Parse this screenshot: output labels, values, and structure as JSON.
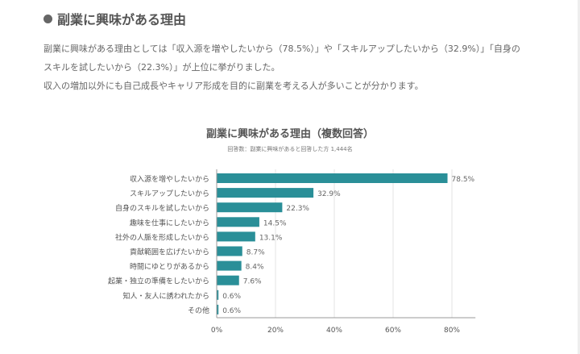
{
  "heading": {
    "icon": "bullet-dot-icon",
    "title": "副業に興味がある理由"
  },
  "description": {
    "line1": "副業に興味がある理由としては「収入源を増やしたいから（78.5%）」や「スキルアップしたいから（32.9%）」「自身の",
    "line2": "スキルを試したいから（22.3%）」が上位に挙がりました。",
    "line3": "収入の増加以外にも自己成長やキャリア形成を目的に副業を考える人が多いことが分かります。"
  },
  "chart_data": {
    "type": "bar",
    "orientation": "horizontal",
    "title": "副業に興味がある理由（複数回答）",
    "subtitle": "回答数：副業に興味があると回答した方 1,444名",
    "categories": [
      "収入源を増やしたいから",
      "スキルアップしたいから",
      "自身のスキルを試したいから",
      "趣味を仕事にしたいから",
      "社外の人脈を形成したいから",
      "貢献範囲を広げたいから",
      "時間にゆとりがあるから",
      "起業・独立の準備をしたいから",
      "知人・友人に誘われたから",
      "その他"
    ],
    "values": [
      78.5,
      32.9,
      22.3,
      14.5,
      13.1,
      8.7,
      8.4,
      7.6,
      0.6,
      0.6
    ],
    "value_labels": [
      "78.5%",
      "32.9%",
      "22.3%",
      "14.5%",
      "13.1%",
      "8.7%",
      "8.4%",
      "7.6%",
      "0.6%",
      "0.6%"
    ],
    "xlim": [
      0,
      88
    ],
    "xticks": [
      0,
      20,
      40,
      60,
      80
    ],
    "xtick_labels": [
      "0%",
      "20%",
      "40%",
      "60%",
      "80%"
    ],
    "grid": true,
    "bar_color": "#2a8f98"
  }
}
